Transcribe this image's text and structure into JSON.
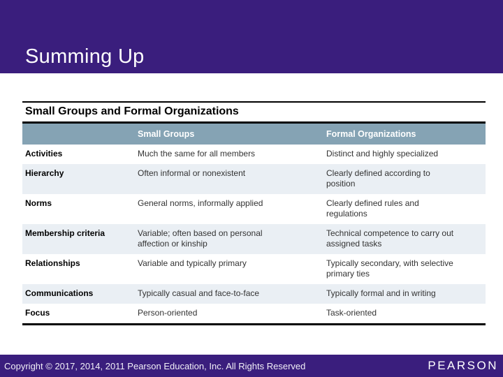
{
  "header": {
    "title": "Summing Up"
  },
  "table": {
    "title": "Small Groups and Formal Organizations",
    "columns": {
      "row_label": "",
      "small_groups": "Small Groups",
      "formal_organizations": "Formal Organizations"
    },
    "rows": [
      {
        "label": "Activities",
        "small_groups": "Much the same for all members",
        "formal_organizations": "Distinct and highly specialized"
      },
      {
        "label": "Hierarchy",
        "small_groups": "Often informal or nonexistent",
        "formal_organizations": "Clearly defined according to\nposition"
      },
      {
        "label": "Norms",
        "small_groups": "General norms, informally applied",
        "formal_organizations": "Clearly defined rules and\nregulations"
      },
      {
        "label": "Membership criteria",
        "small_groups": "Variable; often based on personal\naffection or kinship",
        "formal_organizations": "Technical competence to carry out\nassigned tasks"
      },
      {
        "label": "Relationships",
        "small_groups": "Variable and typically primary",
        "formal_organizations": "Typically secondary, with selective\nprimary ties"
      },
      {
        "label": "Communications",
        "small_groups": "Typically casual and face-to-face",
        "formal_organizations": "Typically formal and in writing"
      },
      {
        "label": "Focus",
        "small_groups": "Person-oriented",
        "formal_organizations": "Task-oriented"
      }
    ]
  },
  "footer": {
    "copyright": "Copyright © 2017, 2014, 2011 Pearson Education, Inc. All Rights Reserved",
    "logo": "PEARSON"
  },
  "colors": {
    "banner_purple": "#3A1E7D",
    "table_header_bg": "#85A3B4",
    "row_stripe_bg": "#EAEFF4",
    "border_black": "#000000",
    "body_text": "#333333"
  }
}
